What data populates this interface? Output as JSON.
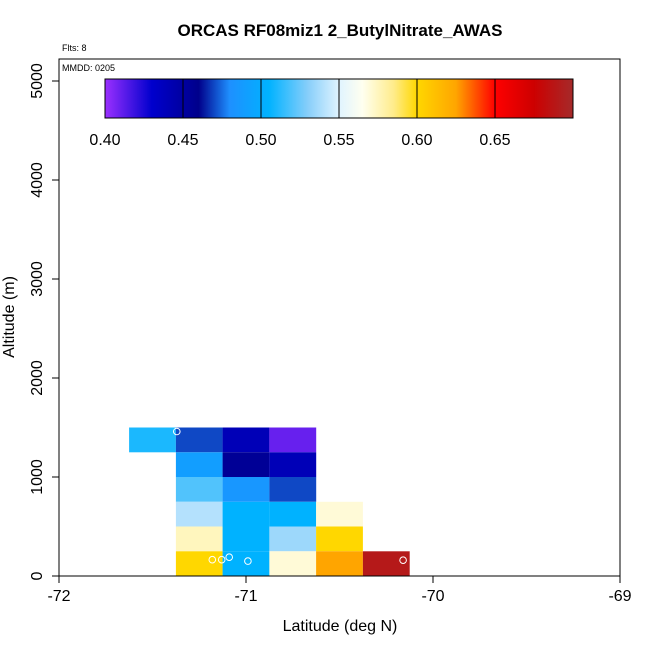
{
  "chart_data": {
    "type": "heatmap",
    "title": "ORCAS RF08miz1 2_ButylNitrate_AWAS",
    "xlabel": "Latitude (deg N)",
    "ylabel": "Altitude (m)",
    "xlim": [
      -72,
      -69
    ],
    "ylim": [
      0,
      5200
    ],
    "x_ticks": [
      -72,
      -71,
      -70,
      -69
    ],
    "y_ticks": [
      0,
      1000,
      2000,
      3000,
      4000,
      5000
    ],
    "flts_label": "Flts: 8",
    "mmdd_label": "MMDD: 0205",
    "colorbar": {
      "min": 0.4,
      "max": 0.7,
      "ticks": [
        0.4,
        0.45,
        0.5,
        0.55,
        0.6,
        0.65
      ],
      "tick_labels": [
        "0.40",
        "0.45",
        "0.50",
        "0.55",
        "0.60",
        "0.65"
      ],
      "stops": [
        {
          "v": 0.4,
          "c": "#9b30ff"
        },
        {
          "v": 0.43,
          "c": "#0000cd"
        },
        {
          "v": 0.46,
          "c": "#00008b"
        },
        {
          "v": 0.48,
          "c": "#1e90ff"
        },
        {
          "v": 0.505,
          "c": "#00b2ff"
        },
        {
          "v": 0.53,
          "c": "#87cefa"
        },
        {
          "v": 0.55,
          "c": "#e0f4ff"
        },
        {
          "v": 0.565,
          "c": "#fffff0"
        },
        {
          "v": 0.585,
          "c": "#ffec8b"
        },
        {
          "v": 0.6,
          "c": "#ffd700"
        },
        {
          "v": 0.625,
          "c": "#ffa500"
        },
        {
          "v": 0.65,
          "c": "#ff0000"
        },
        {
          "v": 0.675,
          "c": "#cd0000"
        },
        {
          "v": 0.7,
          "c": "#a52a2a"
        }
      ]
    },
    "cell_size": {
      "lat": 0.25,
      "alt": 250
    },
    "cells": [
      {
        "lat": -71.5,
        "alt": 1250,
        "value": 0.51
      },
      {
        "lat": -71.25,
        "alt": 1250,
        "value": 0.47
      },
      {
        "lat": -71.0,
        "alt": 1250,
        "value": 0.44
      },
      {
        "lat": -70.75,
        "alt": 1250,
        "value": 0.41
      },
      {
        "lat": -71.25,
        "alt": 1000,
        "value": 0.49
      },
      {
        "lat": -71.0,
        "alt": 1000,
        "value": 0.455
      },
      {
        "lat": -70.75,
        "alt": 1000,
        "value": 0.44
      },
      {
        "lat": -71.25,
        "alt": 750,
        "value": 0.52
      },
      {
        "lat": -71.0,
        "alt": 750,
        "value": 0.485
      },
      {
        "lat": -70.75,
        "alt": 750,
        "value": 0.47
      },
      {
        "lat": -71.25,
        "alt": 500,
        "value": 0.54
      },
      {
        "lat": -71.0,
        "alt": 500,
        "value": 0.505
      },
      {
        "lat": -70.75,
        "alt": 500,
        "value": 0.505
      },
      {
        "lat": -70.5,
        "alt": 500,
        "value": 0.57
      },
      {
        "lat": -71.25,
        "alt": 250,
        "value": 0.575
      },
      {
        "lat": -71.0,
        "alt": 250,
        "value": 0.505
      },
      {
        "lat": -70.75,
        "alt": 250,
        "value": 0.535
      },
      {
        "lat": -70.5,
        "alt": 250,
        "value": 0.6
      },
      {
        "lat": -71.25,
        "alt": 0,
        "value": 0.6
      },
      {
        "lat": -71.0,
        "alt": 0,
        "value": 0.505
      },
      {
        "lat": -70.75,
        "alt": 0,
        "value": 0.57
      },
      {
        "lat": -70.5,
        "alt": 0,
        "value": 0.625
      },
      {
        "lat": -70.25,
        "alt": 0,
        "value": 0.69
      }
    ],
    "sample_points": [
      {
        "lat": -71.37,
        "alt": 1460
      },
      {
        "lat": -70.57,
        "alt": 1460
      },
      {
        "lat": -71.18,
        "alt": 165
      },
      {
        "lat": -71.13,
        "alt": 165
      },
      {
        "lat": -71.09,
        "alt": 190
      },
      {
        "lat": -70.99,
        "alt": 150
      },
      {
        "lat": -70.16,
        "alt": 160
      }
    ]
  }
}
